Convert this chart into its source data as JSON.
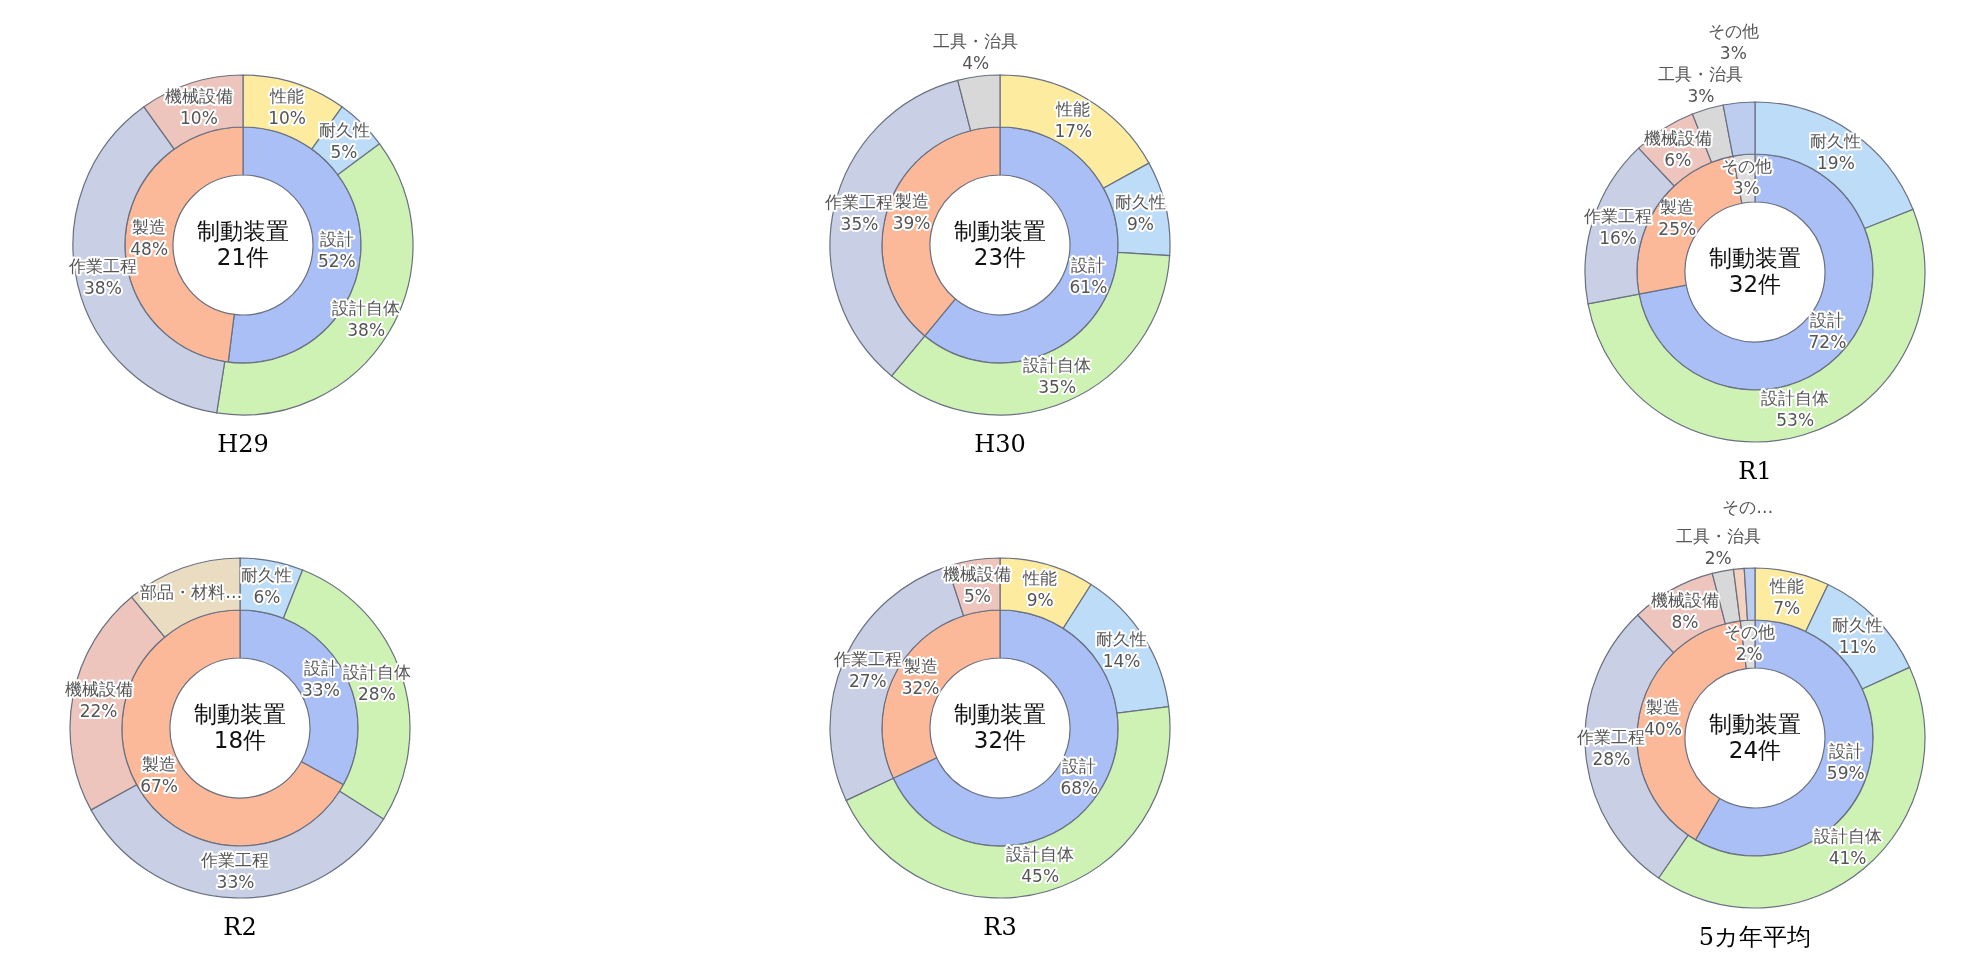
{
  "chart_data": [
    {
      "type": "donut",
      "title": "H29",
      "annotations": [
        "制動装置",
        "21件"
      ],
      "categories": [
        "設計",
        "製造"
      ],
      "values": [
        52,
        48
      ],
      "colors": [
        "#a9bff5",
        "#fbb99a"
      ],
      "value_labels": [
        "52%",
        "48%"
      ]
    },
    {
      "type": "donut",
      "categories": [
        "性能",
        "耐久性",
        "設計自体",
        "作業工程",
        "機械設備"
      ],
      "values": [
        10,
        5,
        38,
        38,
        10
      ],
      "colors": [
        "#fdeba0",
        "#bcdcf8",
        "#cdf2b4",
        "#c9d0e6",
        "#eec5bd"
      ],
      "value_labels": [
        "10%",
        "5%",
        "38%",
        "38%",
        "10%"
      ]
    },
    {
      "type": "donut",
      "title": "H30",
      "annotations": [
        "制動装置",
        "23件"
      ],
      "categories": [
        "設計",
        "製造"
      ],
      "values": [
        61,
        39
      ],
      "colors": [
        "#a9bff5",
        "#fbb99a"
      ],
      "value_labels": [
        "61%",
        "39%"
      ]
    },
    {
      "type": "donut",
      "categories": [
        "性能",
        "耐久性",
        "設計自体",
        "作業工程",
        "工具・治具"
      ],
      "values": [
        17,
        9,
        35,
        35,
        4
      ],
      "colors": [
        "#fdeba0",
        "#bcdcf8",
        "#cdf2b4",
        "#c9d0e6",
        "#d8d8d8"
      ],
      "value_labels": [
        "17%",
        "9%",
        "35%",
        "35%",
        "4%"
      ]
    },
    {
      "type": "donut",
      "title": "R1",
      "annotations": [
        "制動装置",
        "32件"
      ],
      "categories": [
        "設計",
        "製造",
        "その他"
      ],
      "values": [
        72,
        25,
        3
      ],
      "colors": [
        "#a9bff5",
        "#fbb99a",
        "#dcdcdc"
      ],
      "value_labels": [
        "72%",
        "25%",
        "3%"
      ]
    },
    {
      "type": "donut",
      "categories": [
        "耐久性",
        "設計自体",
        "作業工程",
        "機械設備",
        "工具・治具",
        "その他"
      ],
      "values": [
        19,
        53,
        16,
        6,
        3,
        3
      ],
      "colors": [
        "#bcdcf8",
        "#cdf2b4",
        "#c9d0e6",
        "#eec5bd",
        "#d8d8d8",
        "#bccdf0"
      ],
      "value_labels": [
        "19%",
        "53%",
        "16%",
        "6%",
        "3%",
        "3%"
      ]
    },
    {
      "type": "donut",
      "title": "R2",
      "annotations": [
        "制動装置",
        "18件"
      ],
      "categories": [
        "設計",
        "製造"
      ],
      "values": [
        33,
        67
      ],
      "colors": [
        "#a9bff5",
        "#fbb99a"
      ],
      "value_labels": [
        "33%",
        "67%"
      ]
    },
    {
      "type": "donut",
      "categories": [
        "耐久性",
        "設計自体",
        "作業工程",
        "機械設備",
        "部品・材料…"
      ],
      "values": [
        6,
        28,
        33,
        22,
        11
      ],
      "colors": [
        "#bcdcf8",
        "#cdf2b4",
        "#c9d0e6",
        "#eec5bd",
        "#eadcc0"
      ],
      "value_labels": [
        "6%",
        "28%",
        "33%",
        "22%",
        null
      ]
    },
    {
      "type": "donut",
      "title": "R3",
      "annotations": [
        "制動装置",
        "32件"
      ],
      "categories": [
        "設計",
        "製造"
      ],
      "values": [
        68,
        32
      ],
      "colors": [
        "#a9bff5",
        "#fbb99a"
      ],
      "value_labels": [
        "68%",
        "32%"
      ]
    },
    {
      "type": "donut",
      "categories": [
        "性能",
        "耐久性",
        "設計自体",
        "作業工程",
        "機械設備"
      ],
      "values": [
        9,
        14,
        45,
        27,
        5
      ],
      "colors": [
        "#fdeba0",
        "#bcdcf8",
        "#cdf2b4",
        "#c9d0e6",
        "#eec5bd"
      ],
      "value_labels": [
        "9%",
        "14%",
        "45%",
        "27%",
        "5%"
      ]
    },
    {
      "type": "donut",
      "title": "5カ年平均",
      "annotations": [
        "制動装置",
        "24件"
      ],
      "categories": [
        "設計",
        "製造",
        "その他"
      ],
      "values": [
        59,
        40,
        2
      ],
      "colors": [
        "#a9bff5",
        "#fbb99a",
        "#dcdcdc"
      ],
      "value_labels": [
        "59%",
        "40%",
        "2%"
      ]
    },
    {
      "type": "donut",
      "categories": [
        "性能",
        "耐久性",
        "設計自体",
        "作業工程",
        "機械設備",
        "工具・治具",
        null,
        "その…"
      ],
      "values": [
        7,
        11,
        41,
        28,
        8,
        2,
        1,
        1
      ],
      "colors": [
        "#fdeba0",
        "#bcdcf8",
        "#cdf2b4",
        "#c9d0e6",
        "#eec5bd",
        "#d8d8d8",
        "#f3d2bf",
        "#bccdf0"
      ],
      "value_labels": [
        "7%",
        "11%",
        "41%",
        "28%",
        "8%",
        "2%",
        null,
        null
      ]
    }
  ]
}
